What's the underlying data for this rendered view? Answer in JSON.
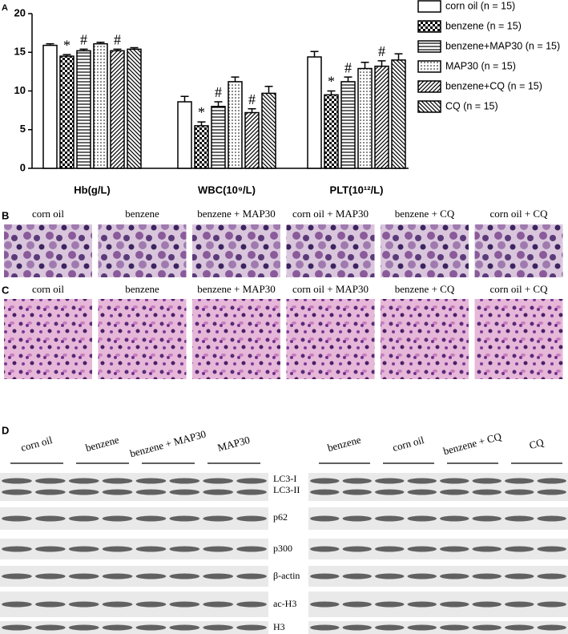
{
  "chart_data": {
    "type": "bar",
    "categories": [
      "Hb(g/L)",
      "WBC(10⁹/L)",
      "PLT(10¹²/L)"
    ],
    "series": [
      {
        "name": "corn oil (n = 15)",
        "color": "#000000",
        "pattern": "none",
        "values": [
          15.9,
          8.6,
          14.4
        ],
        "errors": [
          0.2,
          0.7,
          0.7
        ]
      },
      {
        "name": "benzene (n = 15)",
        "color": "#000000",
        "pattern": "checker",
        "values": [
          14.5,
          5.5,
          9.5
        ],
        "errors": [
          0.2,
          0.5,
          0.5
        ],
        "marks": [
          "*",
          "*",
          "*"
        ]
      },
      {
        "name": "benzene+MAP30 (n = 15)",
        "color": "#000000",
        "pattern": "hlines",
        "values": [
          15.2,
          8.0,
          11.2
        ],
        "errors": [
          0.2,
          0.6,
          0.6
        ],
        "marks": [
          "#",
          "#",
          "#"
        ]
      },
      {
        "name": "MAP30 (n = 15)",
        "color": "#000000",
        "pattern": "dots",
        "values": [
          16.1,
          11.2,
          12.9
        ],
        "errors": [
          0.2,
          0.6,
          0.8
        ]
      },
      {
        "name": "benzene+CQ (n = 15)",
        "color": "#000000",
        "pattern": "diag",
        "values": [
          15.2,
          7.2,
          13.2
        ],
        "errors": [
          0.2,
          0.5,
          0.7
        ],
        "marks": [
          "#",
          "#",
          "#"
        ]
      },
      {
        "name": "CQ (n = 15)",
        "color": "#000000",
        "pattern": "diag2",
        "values": [
          15.4,
          9.7,
          14.0
        ],
        "errors": [
          0.2,
          0.9,
          0.8
        ]
      }
    ],
    "ylim": [
      0,
      20
    ],
    "yticks": [
      0,
      5,
      10,
      15,
      20
    ],
    "legend": "right"
  },
  "panel_labels": [
    "A",
    "B",
    "C",
    "D"
  ],
  "panel_b": {
    "images": [
      "corn oil",
      "benzene",
      "benzene + MAP30",
      "corn oil + MAP30",
      "benzene + CQ",
      "corn oil + CQ"
    ]
  },
  "panel_c": {
    "images": [
      "corn oil",
      "benzene",
      "benzene + MAP30",
      "corn oil + MAP30",
      "benzene + CQ",
      "corn oil + CQ"
    ]
  },
  "panel_d": {
    "left_groups": [
      "corn oil",
      "benzene",
      "benzene + MAP30",
      "MAP30"
    ],
    "right_groups": [
      "benzene",
      "corn oil",
      "benzene + CQ",
      "CQ"
    ],
    "proteins": [
      "LC3-I",
      "LC3-II",
      "p62",
      "p300",
      "β-actin",
      "ac-H3",
      "H3"
    ]
  }
}
